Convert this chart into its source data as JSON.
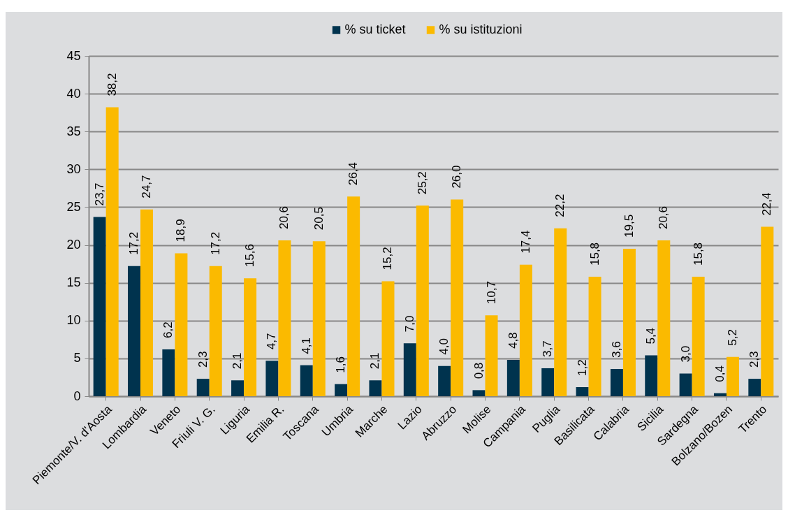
{
  "chart_data": {
    "type": "bar",
    "categories": [
      "Piemonte/V. d'Aosta",
      "Lombardia",
      "Veneto",
      "Friuli V. G.",
      "Liguria",
      "Emilia R.",
      "Toscana",
      "Umbria",
      "Marche",
      "Lazio",
      "Abruzzo",
      "Molise",
      "Campania",
      "Puglia",
      "Basilicata",
      "Calabria",
      "Sicilia",
      "Sardegna",
      "Bolzano/Bozen",
      "Trento"
    ],
    "series": [
      {
        "name": "% su ticket",
        "color": "#00334e",
        "values": [
          23.7,
          17.2,
          6.2,
          2.3,
          2.1,
          4.7,
          4.1,
          1.6,
          2.1,
          7.0,
          4.0,
          0.8,
          4.8,
          3.7,
          1.2,
          3.6,
          5.4,
          3.0,
          0.4,
          2.3
        ],
        "value_labels": [
          "23,7",
          "17,2",
          "6,2",
          "2,3",
          "2,1",
          "4,7",
          "4,1",
          "1,6",
          "2,1",
          "7,0",
          "4,0",
          "0,8",
          "4,8",
          "3,7",
          "1,2",
          "3,6",
          "5,4",
          "3,0",
          "0,4",
          "2,3"
        ]
      },
      {
        "name": "% su istituzioni",
        "color": "#fbba00",
        "values": [
          38.2,
          24.7,
          18.9,
          17.2,
          15.6,
          20.6,
          20.5,
          26.4,
          15.2,
          25.2,
          26.0,
          10.7,
          17.4,
          22.2,
          15.8,
          19.5,
          20.6,
          15.8,
          5.2,
          22.4
        ],
        "value_labels": [
          "38,2",
          "24,7",
          "18,9",
          "17,2",
          "15,6",
          "20,6",
          "20,5",
          "26,4",
          "15,2",
          "25,2",
          "26,0",
          "10,7",
          "17,4",
          "22,2",
          "15,8",
          "19,5",
          "20,6",
          "15,8",
          "5,2",
          "22,4"
        ]
      }
    ],
    "ylim": [
      0,
      45
    ],
    "yticks": [
      0,
      5,
      10,
      15,
      20,
      25,
      30,
      35,
      40,
      45
    ],
    "grid": "y",
    "legend": "top"
  }
}
